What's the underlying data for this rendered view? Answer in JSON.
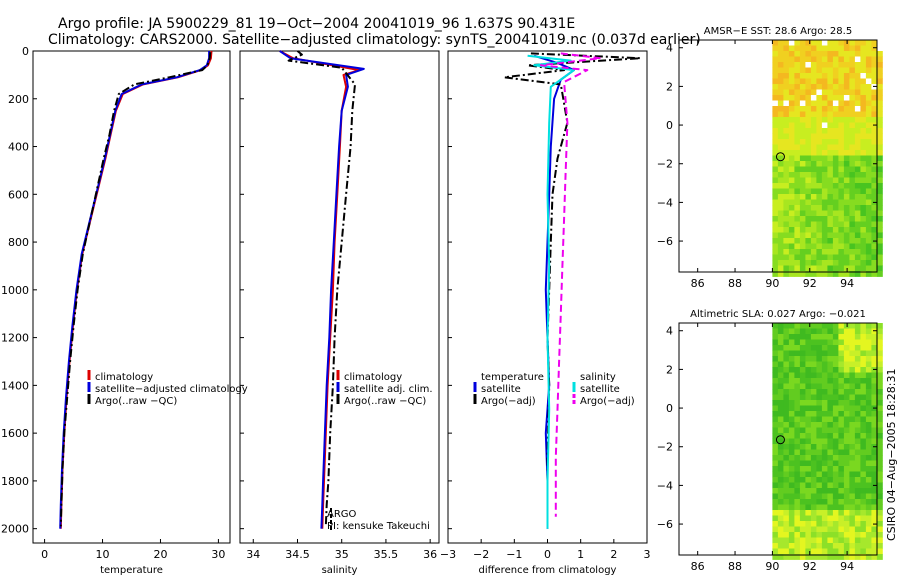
{
  "title": {
    "line1": "Argo profile: JA 5900229_81 19−Oct−2004 20041019_96 1.637S 90.431E",
    "line2": "Climatology: CARS2000. Satellite−adjusted climatology: synTS_20041019.nc (0.037d earlier)"
  },
  "credit": "CSIRO 04−Aug−2005 18:28:31",
  "colors": {
    "climatology": "#dd0000",
    "satellite": "#0000dd",
    "argo": "#000000",
    "salinity": "#00e0e0",
    "salinity_adj": "#ee00ee",
    "map_white": "#ffffff"
  },
  "chart_data": [
    {
      "type": "line",
      "id": "temperature-profile",
      "xlabel": "temperature",
      "ylabel": "",
      "xlim": [
        -2,
        32
      ],
      "ylim": [
        2060,
        0
      ],
      "xticks": [
        0,
        10,
        20,
        30
      ],
      "yticks": [
        0,
        200,
        400,
        600,
        800,
        1000,
        1200,
        1400,
        1600,
        1800,
        2000
      ],
      "xtick_labels": [
        "0",
        "10",
        "20",
        "30"
      ],
      "ytick_labels": [
        "0",
        "200",
        "400",
        "600",
        "800",
        "1000",
        "1200",
        "1400",
        "1600",
        "1800",
        "2000"
      ],
      "legend": [
        "climatology",
        "satellite−adjusted climatology",
        "Argo(..raw −QC)"
      ],
      "series": [
        {
          "name": "climatology",
          "style": "solid",
          "color": "climatology",
          "x": [
            28.8,
            28.7,
            28.2,
            27,
            23,
            17,
            13.5,
            12.3,
            11.4,
            10.5,
            9.5,
            8.5,
            7.5,
            6.5,
            5.6,
            4.9,
            4.3,
            3.8,
            3.4,
            3.1,
            2.9,
            2.8
          ],
          "y": [
            0,
            30,
            60,
            80,
            110,
            140,
            180,
            250,
            350,
            450,
            550,
            650,
            750,
            850,
            1000,
            1150,
            1300,
            1450,
            1600,
            1750,
            1900,
            2000
          ]
        },
        {
          "name": "satellite-adjusted climatology",
          "style": "solid",
          "color": "satellite",
          "x": [
            28.4,
            28.4,
            28,
            26.8,
            22.8,
            16.8,
            13.3,
            12.2,
            11.3,
            10.4,
            9.4,
            8.4,
            7.4,
            6.4,
            5.5,
            4.8,
            4.2,
            3.7,
            3.3,
            3.0,
            2.8,
            2.7
          ],
          "y": [
            0,
            30,
            60,
            80,
            110,
            140,
            180,
            250,
            350,
            450,
            550,
            650,
            750,
            850,
            1000,
            1150,
            1300,
            1450,
            1600,
            1750,
            1900,
            2000
          ]
        },
        {
          "name": "Argo(..raw -QC)",
          "style": "dashdot",
          "color": "argo",
          "x": [
            28.6,
            28.5,
            28.1,
            27.2,
            21.5,
            15.5,
            12.8,
            12.0,
            11.2,
            10.2,
            9.3,
            8.4,
            7.5,
            6.6,
            5.7,
            5.0,
            4.4,
            3.9,
            3.4,
            3.1,
            2.9,
            2.8
          ],
          "y": [
            5,
            30,
            60,
            80,
            110,
            140,
            180,
            250,
            350,
            450,
            550,
            650,
            750,
            850,
            1000,
            1150,
            1300,
            1450,
            1600,
            1750,
            1900,
            1990
          ]
        }
      ]
    },
    {
      "type": "line",
      "id": "salinity-profile",
      "xlabel": "salinity",
      "ylabel": "",
      "xlim": [
        33.85,
        36.1
      ],
      "ylim": [
        2060,
        0
      ],
      "xticks": [
        34,
        34.5,
        35,
        35.5,
        36
      ],
      "xtick_labels": [
        "34",
        "34.5",
        "35",
        "35.5",
        "36"
      ],
      "legend": [
        "climatology",
        "satellite adj. clim.",
        "Argo(..raw −QC)"
      ],
      "annotations": [
        "ARGO",
        "PI: kensuke Takeuchi"
      ],
      "series": [
        {
          "name": "climatology",
          "style": "solid",
          "color": "climatology",
          "x": [
            34.3,
            34.45,
            35.2,
            35.02,
            35.05,
            35.0,
            34.98,
            34.95,
            34.92,
            34.9,
            34.87,
            34.84,
            34.82,
            34.8,
            34.79,
            34.78
          ],
          "y": [
            0,
            30,
            80,
            100,
            150,
            250,
            400,
            600,
            800,
            1000,
            1200,
            1400,
            1600,
            1800,
            1900,
            2000
          ]
        },
        {
          "name": "satellite adj. clim.",
          "style": "solid",
          "color": "satellite",
          "x": [
            34.3,
            34.42,
            35.25,
            35.05,
            35.07,
            35.0,
            34.97,
            34.94,
            34.91,
            34.88,
            34.86,
            34.83,
            34.81,
            34.79,
            34.78,
            34.77
          ],
          "y": [
            0,
            30,
            75,
            100,
            150,
            250,
            400,
            600,
            800,
            1000,
            1200,
            1400,
            1600,
            1800,
            1900,
            2000
          ]
        },
        {
          "name": "Argo(..raw -QC)",
          "style": "dashdot",
          "color": "argo",
          "x": [
            34.5,
            34.55,
            34.4,
            35.0,
            35.15,
            35.12,
            35.1,
            35.05,
            35.0,
            34.95,
            34.92,
            34.9,
            34.87,
            34.85,
            34.83,
            34.82
          ],
          "y": [
            0,
            15,
            40,
            70,
            140,
            250,
            400,
            600,
            800,
            1000,
            1200,
            1400,
            1600,
            1800,
            1900,
            1990
          ]
        }
      ]
    },
    {
      "type": "line",
      "id": "difference-profile",
      "xlabel": "difference from climatology",
      "ylabel": "",
      "xlim": [
        -3,
        3
      ],
      "ylim": [
        2060,
        0
      ],
      "xticks": [
        -3,
        -2,
        -1,
        0,
        1,
        2,
        3
      ],
      "xtick_labels": [
        "−3",
        "−2",
        "−1",
        "0",
        "1",
        "2",
        "3"
      ],
      "legend_left": [
        "temperature",
        "satellite",
        "Argo(−adj)"
      ],
      "legend_right": [
        "salinity",
        "satellite",
        "Argo(−adj)"
      ],
      "series": [
        {
          "name": "temperature satellite",
          "style": "solid",
          "color": "satellite",
          "x": [
            -0.4,
            0.3,
            0.8,
            0.4,
            0.2,
            0.1,
            0.05,
            0.0,
            -0.05,
            0.0,
            0.05,
            -0.05,
            0.0,
            0.0
          ],
          "y": [
            20,
            50,
            80,
            120,
            200,
            400,
            600,
            800,
            1000,
            1200,
            1400,
            1600,
            1800,
            2000
          ]
        },
        {
          "name": "temperature Argo(-adj)",
          "style": "dashdot",
          "color": "argo",
          "x": [
            -0.5,
            2.8,
            -0.6,
            0.5,
            -1.3,
            0.4,
            0.6,
            0.3,
            0.15,
            0.1,
            0.05,
            0.0,
            0.05,
            0.0,
            0.0
          ],
          "y": [
            10,
            30,
            60,
            80,
            110,
            140,
            300,
            450,
            600,
            800,
            1000,
            1200,
            1400,
            1700,
            1990
          ]
        },
        {
          "name": "salinity satellite",
          "style": "solid",
          "color": "salinity",
          "x": [
            -0.6,
            0.7,
            -0.4,
            0.8,
            0.1,
            0.05,
            0.0,
            0.05,
            0.0,
            0.05,
            0.0,
            0.0
          ],
          "y": [
            20,
            40,
            60,
            80,
            150,
            300,
            600,
            900,
            1200,
            1500,
            1800,
            2000
          ]
        },
        {
          "name": "salinity Argo(-adj)",
          "style": "dashed",
          "color": "salinity_adj",
          "x": [
            0.4,
            1.6,
            -0.2,
            1.2,
            0.5,
            0.6,
            0.55,
            0.5,
            0.45,
            0.4,
            0.35,
            0.3,
            0.25,
            0.25
          ],
          "y": [
            10,
            30,
            60,
            80,
            130,
            300,
            500,
            700,
            900,
            1100,
            1300,
            1500,
            1700,
            1950
          ]
        }
      ]
    },
    {
      "type": "heatmap",
      "id": "sst-map",
      "title": "AMSR−E SST: 28.6 Argo: 28.5",
      "xlim": [
        85,
        95.6
      ],
      "ylim": [
        -7.6,
        4.4
      ],
      "xticks": [
        86,
        88,
        90,
        92,
        94
      ],
      "yticks": [
        -6,
        -4,
        -2,
        0,
        2,
        4
      ],
      "xtick_labels": [
        "86",
        "88",
        "90",
        "92",
        "94"
      ],
      "ytick_labels": [
        "−6",
        "−4",
        "−2",
        "0",
        "2",
        "4"
      ],
      "data_xlim": [
        90,
        95.6
      ],
      "argo_point": [
        90.431,
        -1.637
      ]
    },
    {
      "type": "heatmap",
      "id": "sla-map",
      "title": "Altimetric SLA: 0.027 Argo: −0.021",
      "xlim": [
        85,
        95.6
      ],
      "ylim": [
        -7.6,
        4.4
      ],
      "xticks": [
        86,
        88,
        90,
        92,
        94
      ],
      "yticks": [
        -6,
        -4,
        -2,
        0,
        2,
        4
      ],
      "xtick_labels": [
        "86",
        "88",
        "90",
        "92",
        "94"
      ],
      "ytick_labels": [
        "−6",
        "−4",
        "−2",
        "0",
        "2",
        "4"
      ],
      "data_xlim": [
        90,
        95.6
      ],
      "argo_point": [
        90.431,
        -1.637
      ]
    }
  ]
}
